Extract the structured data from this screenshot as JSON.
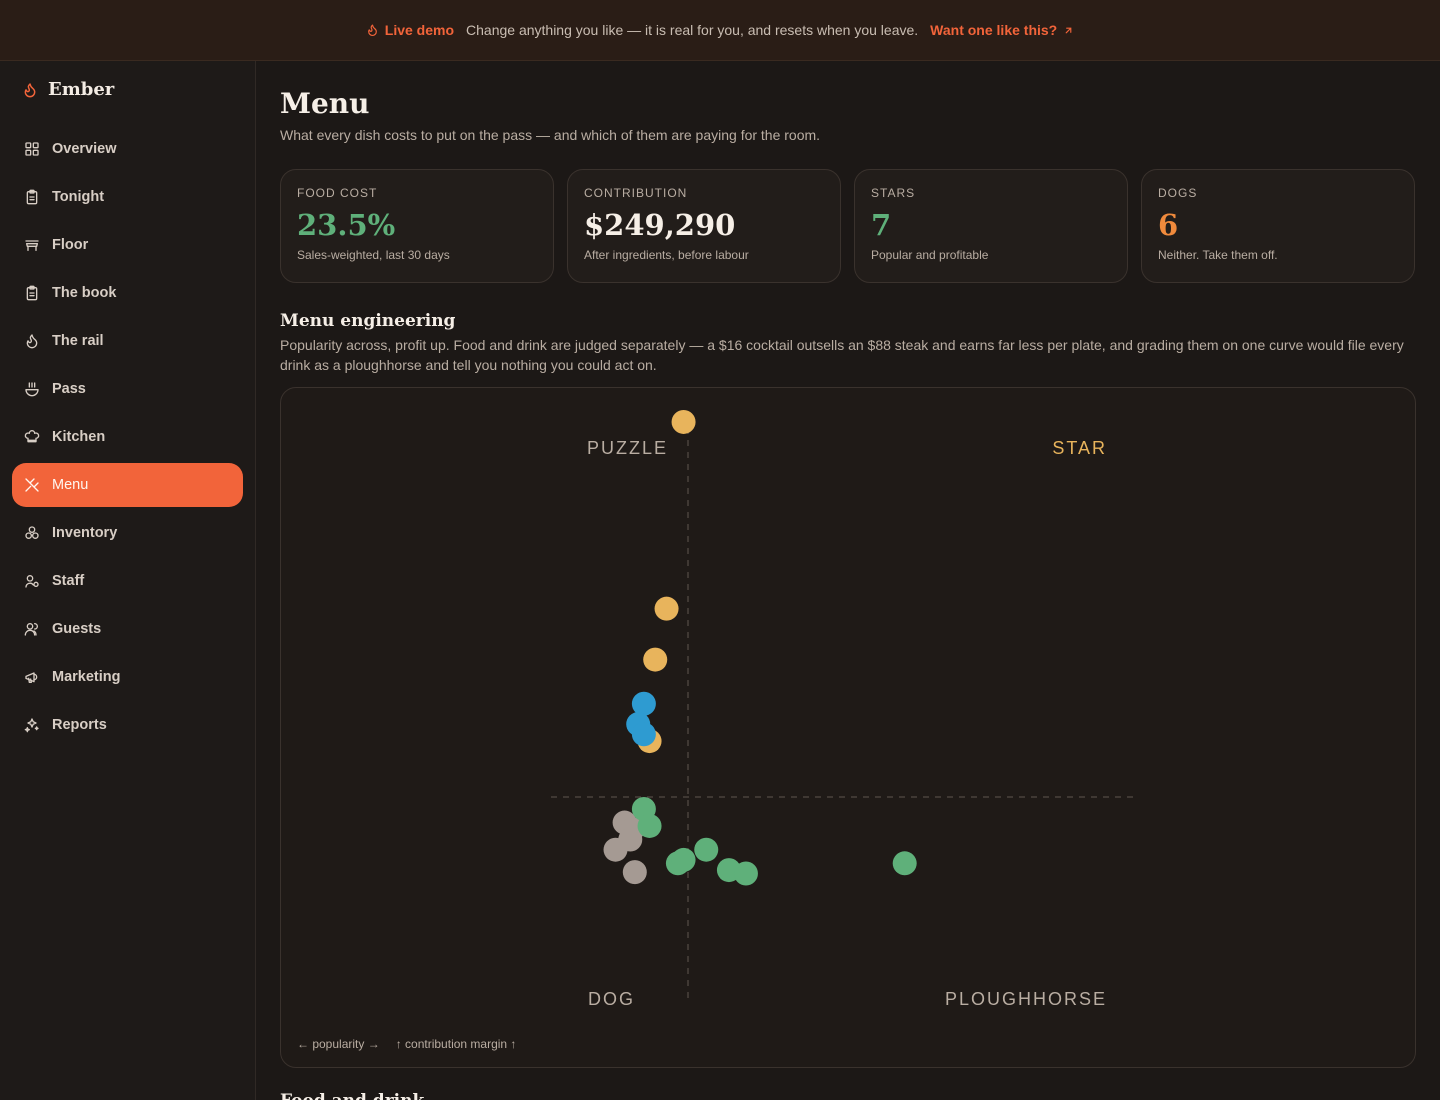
{
  "banner": {
    "live": "Live demo",
    "message": "Change anything you like — it is real for you, and resets when you leave.",
    "cta": "Want one like this?"
  },
  "brand": {
    "name": "Ember"
  },
  "nav": [
    {
      "label": "Overview",
      "icon": "grid-icon"
    },
    {
      "label": "Tonight",
      "icon": "clipboard-icon"
    },
    {
      "label": "Floor",
      "icon": "table-icon"
    },
    {
      "label": "The book",
      "icon": "clipboard-icon"
    },
    {
      "label": "The rail",
      "icon": "flame-icon"
    },
    {
      "label": "Pass",
      "icon": "pass-icon"
    },
    {
      "label": "Kitchen",
      "icon": "chef-hat-icon"
    },
    {
      "label": "Menu",
      "icon": "utensils-icon",
      "active": true
    },
    {
      "label": "Inventory",
      "icon": "boxes-icon"
    },
    {
      "label": "Staff",
      "icon": "user-cog-icon"
    },
    {
      "label": "Guests",
      "icon": "users-icon"
    },
    {
      "label": "Marketing",
      "icon": "megaphone-icon"
    },
    {
      "label": "Reports",
      "icon": "sparkles-icon"
    }
  ],
  "page": {
    "title": "Menu",
    "subtitle": "What every dish costs to put on the pass — and which of them are paying for the room."
  },
  "cards": [
    {
      "label": "FOOD COST",
      "value": "23.5%",
      "note": "Sales-weighted, last 30 days",
      "color": "#5fb07a"
    },
    {
      "label": "CONTRIBUTION",
      "value": "$249,290",
      "note": "After ingredients, before labour",
      "color": "#f6efe7"
    },
    {
      "label": "STARS",
      "value": "7",
      "note": "Popular and profitable",
      "color": "#5fb07a"
    },
    {
      "label": "DOGS",
      "value": "6",
      "note": "Neither. Take them off.",
      "color": "#f08a3c"
    }
  ],
  "section": {
    "title": "Menu engineering",
    "description": "Popularity across, profit up. Food and drink are judged separately — a $16 cocktail outsells an $88 steak and earns far less per plate, and grading them on one curve would file every drink as a ploughhorse and tell you nothing you could act on."
  },
  "chart_data": {
    "type": "scatter",
    "quadrants": {
      "top_left": "PUZZLE",
      "top_right": "STAR",
      "bottom_left": "DOG",
      "bottom_right": "PLOUGHHORSE"
    },
    "xlabel": "popularity",
    "ylabel": "contribution margin",
    "x_range": [
      0,
      100
    ],
    "y_range": [
      0,
      100
    ],
    "grid": false,
    "colors": {
      "star": "#e8b45c",
      "puzzle": "#2e9bd1",
      "ploughhorse": "#5fb07a",
      "dog": "#a59a93"
    },
    "series": [
      {
        "name": "STAR",
        "points": [
          [
            35.5,
            95
          ],
          [
            34,
            67.5
          ],
          [
            33,
            60
          ],
          [
            32.5,
            48
          ]
        ]
      },
      {
        "name": "PUZZLE",
        "points": [
          [
            32,
            53.5
          ],
          [
            31.5,
            50.5
          ],
          [
            32,
            49
          ]
        ]
      },
      {
        "name": "PLOUGHHORSE",
        "points": [
          [
            32,
            38
          ],
          [
            32.5,
            35.5
          ],
          [
            35,
            30
          ],
          [
            35.5,
            30.5
          ],
          [
            37.5,
            32
          ],
          [
            39.5,
            29
          ],
          [
            41,
            28.5
          ],
          [
            55,
            30
          ]
        ]
      },
      {
        "name": "DOG",
        "points": [
          [
            30.3,
            36
          ],
          [
            31,
            35
          ],
          [
            30.8,
            33.5
          ],
          [
            29.5,
            32
          ],
          [
            31.2,
            28.7
          ]
        ]
      }
    ]
  },
  "axis_note": {
    "x": "← popularity →",
    "y": "↑ contribution margin ↑"
  },
  "below_title": "Food and drink"
}
